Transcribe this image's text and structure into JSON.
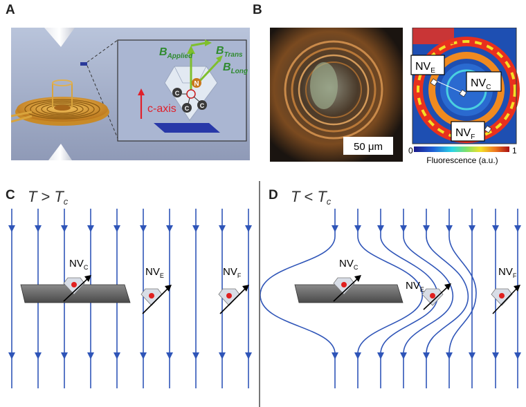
{
  "figure": {
    "panels": {
      "a": {
        "letter": "A"
      },
      "b": {
        "letter": "B"
      },
      "c": {
        "letter": "C"
      },
      "d": {
        "letter": "D"
      }
    },
    "panel_a": {
      "b_applied_main": "B",
      "b_applied_sub": "Applied",
      "b_trans_main": "B",
      "b_trans_sub": "Trans",
      "b_long_main": "B",
      "b_long_sub": "Long",
      "c_axis_label": "c-axis",
      "carbon_label": "C",
      "nitrogen_label": "N"
    },
    "panel_b": {
      "scale_bar": "50 μm",
      "nv_e": {
        "main": "NV",
        "sub": "E"
      },
      "nv_c": {
        "main": "NV",
        "sub": "C"
      },
      "nv_f": {
        "main": "NV",
        "sub": "F"
      },
      "colorbar_min": "0",
      "colorbar_max": "1",
      "colorbar_label": "Fluorescence (a.u.)",
      "colors": {
        "accent_red": "#cc1a1a",
        "field_line": "#2f55b8"
      }
    },
    "panel_c": {
      "cond_t": "T",
      "cond_op": ">",
      "cond_tc_main": "T",
      "cond_tc_sub": "c",
      "nv_c": {
        "main": "NV",
        "sub": "C"
      },
      "nv_e": {
        "main": "NV",
        "sub": "E"
      },
      "nv_f": {
        "main": "NV",
        "sub": "F"
      }
    },
    "panel_d": {
      "cond_t": "T",
      "cond_op": "<",
      "cond_tc_main": "T",
      "cond_tc_sub": "c",
      "nv_c": {
        "main": "NV",
        "sub": "C"
      },
      "nv_e": {
        "main": "NV",
        "sub": "E"
      },
      "nv_f": {
        "main": "NV",
        "sub": "F"
      }
    }
  }
}
